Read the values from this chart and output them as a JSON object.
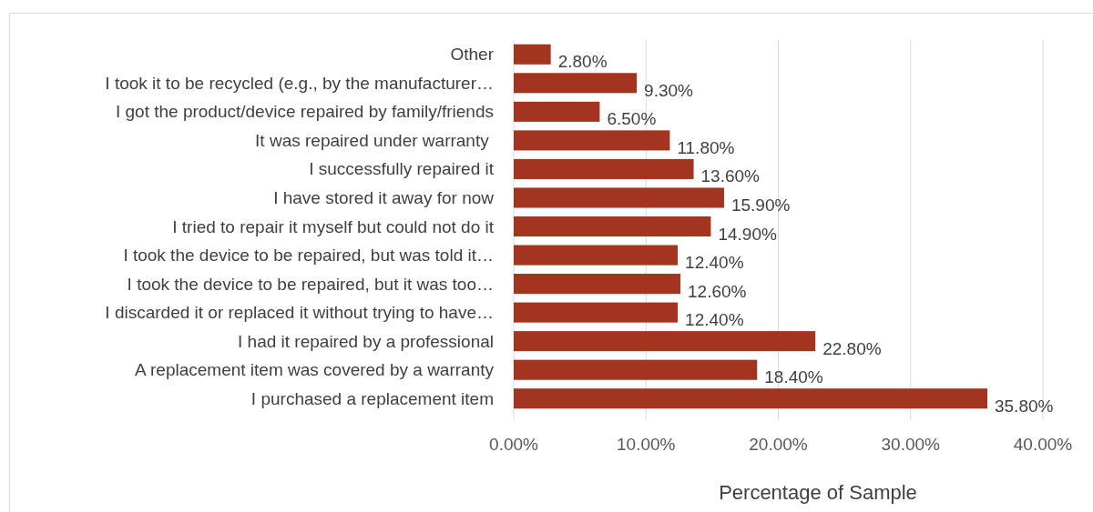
{
  "chart_data": {
    "type": "bar",
    "orientation": "horizontal",
    "xlabel": "Percentage of Sample",
    "categories": [
      "Other",
      "I took it to be recycled (e.g., by the manufacturer…",
      "I got the product/device repaired by family/friends",
      "It was repaired under warranty ",
      "I successfully repaired it",
      "I have stored it away for now",
      "I tried to repair it myself but could not do it",
      "I took the device to be repaired, but was told it…",
      "I took the device to be repaired, but it was too…",
      "I discarded it or replaced it without trying to have…",
      "I had it repaired by a professional",
      "A replacement item was covered by a warranty",
      "I purchased a replacement item"
    ],
    "values": [
      2.8,
      9.3,
      6.5,
      11.8,
      13.6,
      15.9,
      14.9,
      12.4,
      12.6,
      12.4,
      22.8,
      18.4,
      35.8
    ],
    "value_labels": [
      "2.80%",
      "9.30%",
      "6.50%",
      "11.80%",
      "13.60%",
      "15.90%",
      "14.90%",
      "12.40%",
      "12.60%",
      "12.40%",
      "22.80%",
      "18.40%",
      "35.80%"
    ],
    "color": "#a33520",
    "xlim": [
      0,
      40
    ],
    "xticks": [
      {
        "value": 0,
        "label": "0.00%"
      },
      {
        "value": 10,
        "label": "10.00%"
      },
      {
        "value": 20,
        "label": "20.00%"
      },
      {
        "value": 30,
        "label": "30.00%"
      },
      {
        "value": 40,
        "label": "40.00%"
      }
    ],
    "grid": "x"
  }
}
